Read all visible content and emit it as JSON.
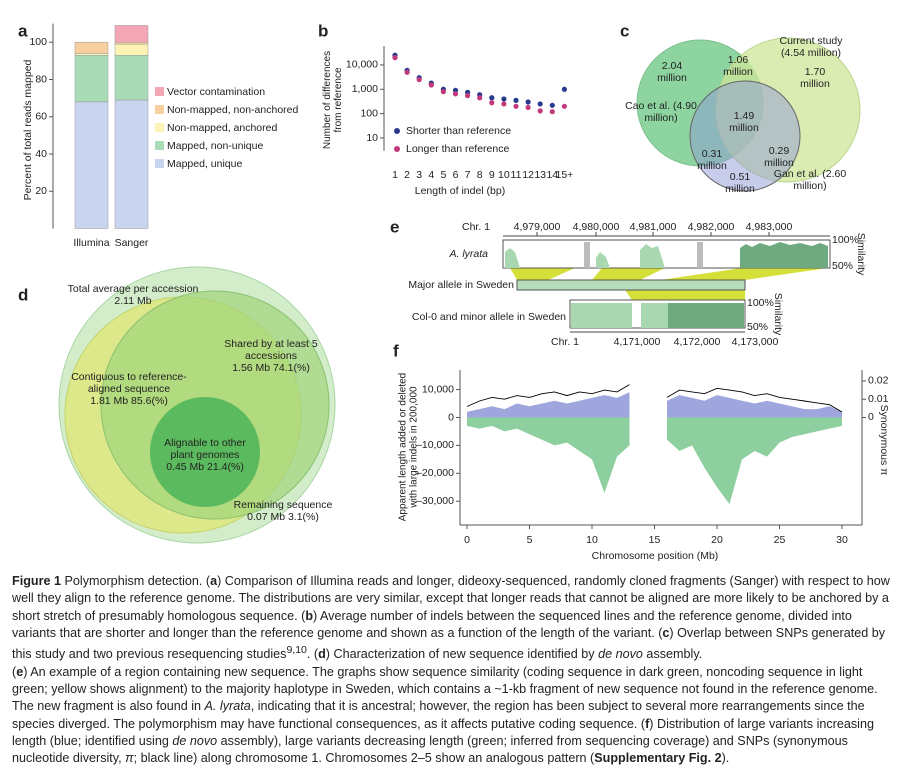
{
  "chart_data": [
    {
      "panel": "a",
      "type": "stacked_bar",
      "ylabel": "Percent of total reads mapped",
      "categories": [
        "Illumina",
        "Sanger"
      ],
      "series": [
        {
          "name": "Mapped, unique",
          "color": "#c9d5ef",
          "values": [
            68,
            69
          ]
        },
        {
          "name": "Mapped, non-unique",
          "color": "#a9dbb6",
          "values": [
            25,
            24
          ]
        },
        {
          "name": "Non-mapped, anchored",
          "color": "#fcf3b5",
          "values": [
            1,
            6
          ]
        },
        {
          "name": "Non-mapped, non-anchored",
          "color": "#f8cf9f",
          "values": [
            6,
            1
          ]
        },
        {
          "name": "Vector contamination",
          "color": "#f3a6b4",
          "values": [
            0,
            9
          ]
        }
      ],
      "ylim": [
        0,
        110
      ],
      "yticks": [
        20,
        40,
        60,
        80,
        100
      ]
    },
    {
      "panel": "b",
      "type": "scatter",
      "log_y": true,
      "xlabel": "Length of indel (bp)",
      "ylabel": "Number of differences from reference",
      "categories": [
        "1",
        "2",
        "3",
        "4",
        "5",
        "6",
        "7",
        "8",
        "9",
        "10",
        "11",
        "12",
        "13",
        "14",
        "15+"
      ],
      "series": [
        {
          "name": "Shorter than reference",
          "color": "#283a8e",
          "values": [
            25000,
            6000,
            3000,
            1800,
            1000,
            900,
            750,
            600,
            450,
            400,
            350,
            300,
            250,
            220,
            1000
          ]
        },
        {
          "name": "Longer than reference",
          "color": "#c23a7c",
          "values": [
            20000,
            5000,
            2500,
            1500,
            800,
            650,
            550,
            450,
            280,
            250,
            200,
            180,
            130,
            120,
            200
          ]
        }
      ],
      "ylim": [
        3,
        60000
      ],
      "yticks": [
        10,
        100,
        {
          "value": 1000,
          "label": "1,000"
        },
        {
          "value": 10000,
          "label": "10,000"
        }
      ]
    },
    {
      "panel": "f",
      "type": "area",
      "xlabel": "Chromosome position (Mb)",
      "ylabel": "Apparent length added or deleted with large indels in 200,000",
      "y2label": "Synonymous π",
      "x": [
        0,
        1,
        2,
        3,
        4,
        5,
        6,
        7,
        8,
        9,
        10,
        11,
        12,
        13,
        14,
        15,
        16,
        17,
        18,
        19,
        20,
        21,
        22,
        23,
        24,
        25,
        26,
        27,
        28,
        29,
        30
      ],
      "series": [
        {
          "color": "#9ea6dd",
          "values": [
            2000,
            3000,
            4000,
            3000,
            5000,
            4000,
            5000,
            6000,
            5000,
            6000,
            7000,
            8000,
            7000,
            9000,
            null,
            null,
            6000,
            8000,
            7000,
            6000,
            8000,
            7000,
            6000,
            5000,
            6000,
            5000,
            4000,
            3000,
            3000,
            4000,
            2000
          ]
        },
        {
          "color": "#8ecfa0",
          "values": [
            -3000,
            -4000,
            -3000,
            -5000,
            -4000,
            -6000,
            -8000,
            -10000,
            -9000,
            -12000,
            -15000,
            -27000,
            -14000,
            -10000,
            null,
            null,
            -8000,
            -12000,
            -10000,
            -18000,
            -25000,
            -31000,
            -15000,
            -12000,
            -14000,
            -9000,
            -7000,
            -6000,
            -5000,
            -4000,
            -3000
          ]
        },
        {
          "color": "#000000",
          "axis": "y2",
          "values": [
            0.006,
            0.009,
            0.011,
            0.01,
            0.012,
            0.011,
            0.013,
            0.014,
            0.012,
            0.014,
            0.013,
            0.015,
            0.014,
            0.018,
            null,
            null,
            0.011,
            0.015,
            0.014,
            0.013,
            0.016,
            0.015,
            0.014,
            0.012,
            0.013,
            0.011,
            0.01,
            0.009,
            0.008,
            0.007,
            0.003
          ]
        }
      ],
      "xlim": [
        -0.56,
        31.6
      ],
      "xticks": [
        0,
        5,
        10,
        15,
        20,
        25,
        30
      ],
      "ylim": [
        -38500,
        17000
      ],
      "yticks": [
        {
          "value": 10000,
          "label": "10,000"
        },
        0,
        {
          "value": -10000,
          "label": "–10,000"
        },
        {
          "value": -20000,
          "label": "–20,000"
        },
        {
          "value": -30000,
          "label": "–30,000"
        }
      ],
      "y2lim": [
        -0.0589,
        0.026
      ],
      "y2ticks": [
        0,
        0.01,
        0.02
      ]
    }
  ],
  "panel_c": {
    "panel": "c",
    "sets": [
      "Cao et al. (4.90 million)",
      "Current study (4.54 million)",
      "Gan et al. (2.60 million)"
    ],
    "regions": [
      "2.04 million",
      "1.06 million",
      "1.70 million",
      "1.49 million",
      "0.31 million",
      "0.29 million",
      "0.51 million"
    ]
  },
  "panel_d": {
    "panel": "d",
    "sets": [
      {
        "name": "Total average per accession",
        "amount": "2.11 Mb"
      },
      {
        "name": "Shared by at least 5 accessions",
        "amount": "1.56 Mb 74.1(%)"
      },
      {
        "name": "Contiguous to reference-aligned sequence",
        "amount": "1.81 Mb 85.6(%)"
      },
      {
        "name": "Alignable to other plant genomes",
        "amount": "0.45 Mb 21.4(%)"
      },
      {
        "name": "Remaining sequence",
        "amount": "0.07 Mb 3.1(%)"
      }
    ]
  },
  "panel_e": {
    "panel": "e",
    "top_axis": {
      "label": "Chr. 1",
      "ticks": [
        "4,979,000",
        "4,980,000",
        "4,981,000",
        "4,982,000",
        "4,983,000"
      ]
    },
    "track": "A. lyrata",
    "top_similarity": {
      "title": "Similarity",
      "max": "100%",
      "min": "50%"
    },
    "major_allele": "Major allele in Sweden",
    "minor_allele": "Col-0 and minor allele in Sweden",
    "bottom_similarity": {
      "title": "Similarity",
      "max": "100%",
      "min": "50%"
    },
    "bottom_axis": {
      "label": "Chr. 1",
      "ticks": [
        "4,171,000",
        "4,172,000",
        "4,173,000"
      ]
    }
  },
  "caption": {
    "paragraphs": [
      [
        {
          "text": "Figure 1",
          "style": "bold"
        },
        {
          "text": " Polymorphism detection. ("
        },
        {
          "text": "a",
          "style": "bold"
        },
        {
          "text": ") Comparison of Illumina reads and longer, dideoxy-sequenced, randomly cloned fragments (Sanger) with respect to how well they align to the reference genome. The distributions are very similar, except that longer reads that cannot be aligned are more likely to be anchored by a short stretch of presumably homologous sequence. ("
        },
        {
          "text": "b",
          "style": "bold"
        },
        {
          "text": ") Average number of indels between the sequenced lines and the reference genome, divided into variants that are shorter and longer than the reference genome and shown as a function of the length of the variant. ("
        },
        {
          "text": "c",
          "style": "bold"
        },
        {
          "text": ") Overlap between SNPs generated by this study and two previous resequencing studies"
        },
        {
          "text": "9,10",
          "style": "superscript"
        },
        {
          "text": ". ("
        },
        {
          "text": "d",
          "style": "bold"
        },
        {
          "text": ") Characterization of new sequence identified by "
        },
        {
          "text": "de novo",
          "style": "italic"
        },
        {
          "text": " assembly."
        }
      ],
      [
        {
          "text": "("
        },
        {
          "text": "e",
          "style": "bold"
        },
        {
          "text": ") An example of a region containing new sequence. The graphs show sequence similarity (coding sequence in dark green, noncoding sequence in light green; yellow shows alignment) to the majority haplotype in Sweden, which contains a ~1-kb fragment of new sequence not found in the reference genome. The new fragment is also found in "
        },
        {
          "text": "A. lyrata",
          "style": "italic"
        },
        {
          "text": ", indicating that it is ancestral; however, the region has been subject to several more rearrangements since the species diverged. The polymorphism may have functional consequences, as it affects putative coding sequence. ("
        },
        {
          "text": "f",
          "style": "bold"
        },
        {
          "text": ") Distribution of large variants increasing length (blue; identified using "
        },
        {
          "text": "de novo",
          "style": "italic"
        },
        {
          "text": " assembly), large variants decreasing length (green; inferred from sequencing coverage) and SNPs (synonymous nucleotide diversity, "
        },
        {
          "text": "π",
          "style": "italic"
        },
        {
          "text": "; black line) along chromosome 1. Chromosomes 2–5 show an analogous pattern ("
        },
        {
          "text": "Supplementary Fig. 2",
          "style": "bold"
        },
        {
          "text": ")."
        }
      ]
    ]
  }
}
